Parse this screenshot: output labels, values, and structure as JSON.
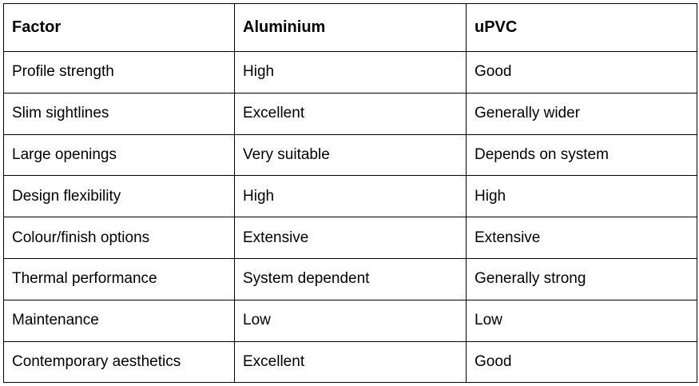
{
  "table": {
    "header": [
      "Factor",
      "Aluminium",
      "uPVC"
    ],
    "rows": [
      [
        "Profile strength",
        "High",
        "Good"
      ],
      [
        "Slim sightlines",
        "Excellent",
        "Generally wider"
      ],
      [
        "Large openings",
        "Very suitable",
        "Depends on system"
      ],
      [
        "Design flexibility",
        "High",
        "High"
      ],
      [
        "Colour/finish options",
        "Extensive",
        "Extensive"
      ],
      [
        "Thermal performance",
        "System dependent",
        "Generally strong"
      ],
      [
        "Maintenance",
        "Low",
        "Low"
      ],
      [
        "Contemporary aesthetics",
        "Excellent",
        "Good"
      ]
    ]
  }
}
